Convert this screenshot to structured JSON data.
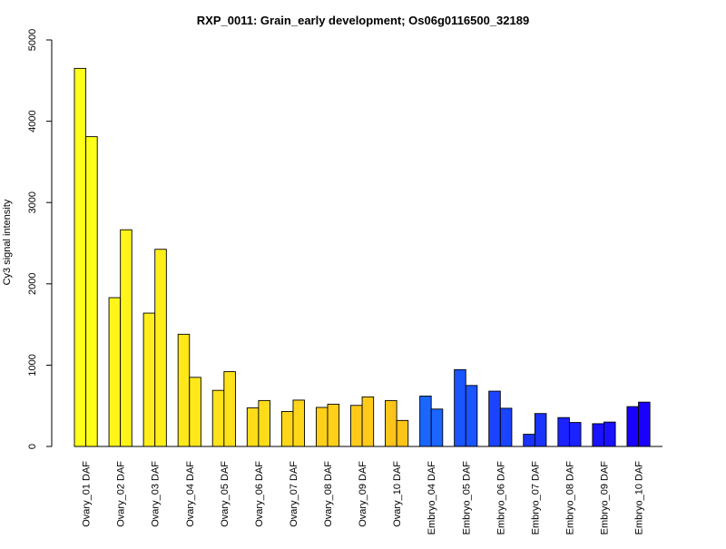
{
  "chart_data": {
    "type": "bar",
    "title": "RXP_0011: Grain_early development; Os06g0116500_32189",
    "xlabel": "",
    "ylabel": "Cy3 signal intensity",
    "ylim": [
      0,
      5000
    ],
    "yticks": [
      0,
      1000,
      2000,
      3000,
      4000,
      5000
    ],
    "grid": false,
    "legend": "none",
    "categories": [
      "Ovary_01 DAF",
      "Ovary_02 DAF",
      "Ovary_03 DAF",
      "Ovary_04 DAF",
      "Ovary_05 DAF",
      "Ovary_06 DAF",
      "Ovary_07 DAF",
      "Ovary_08 DAF",
      "Ovary_09 DAF",
      "Ovary_10 DAF",
      "Embryo_04 DAF",
      "Embryo_05 DAF",
      "Embryo_06 DAF",
      "Embryo_07 DAF",
      "Embryo_08 DAF",
      "Embryo_09 DAF",
      "Embryo_10 DAF"
    ],
    "colors": [
      "#ffff1a",
      "#fff51a",
      "#ffee1a",
      "#ffe81a",
      "#ffe21a",
      "#ffdc1a",
      "#ffd61a",
      "#ffd01a",
      "#ffca1a",
      "#ffc41a",
      "#1a66ff",
      "#1a55ff",
      "#1a44ff",
      "#1a33ff",
      "#1a22ff",
      "#1a11ff",
      "#1a00ff"
    ],
    "series": [
      {
        "values": [
          4650,
          1830,
          1640,
          1380,
          690,
          475,
          430,
          480,
          505,
          565,
          620,
          945,
          680,
          150,
          355,
          280,
          490
        ]
      },
      {
        "values": [
          3810,
          2665,
          2425,
          850,
          920,
          565,
          570,
          520,
          610,
          320,
          460,
          750,
          470,
          405,
          295,
          300,
          545
        ]
      }
    ]
  }
}
